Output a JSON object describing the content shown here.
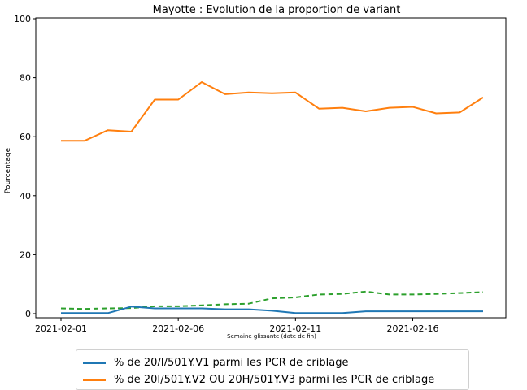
{
  "chart_data": {
    "type": "line",
    "title": "Mayotte : Evolution de la proportion de variant",
    "xlabel": "Semaine glissante (date de fin)",
    "ylabel": "Pourcentage",
    "ylim": [
      0,
      100
    ],
    "yticks": [
      0,
      20,
      40,
      60,
      80,
      100
    ],
    "xticks": [
      "2021-02-01",
      "2021-02-06",
      "2021-02-11",
      "2021-02-16"
    ],
    "x": [
      "2021-02-01",
      "2021-02-02",
      "2021-02-03",
      "2021-02-04",
      "2021-02-05",
      "2021-02-06",
      "2021-02-07",
      "2021-02-08",
      "2021-02-09",
      "2021-02-10",
      "2021-02-11",
      "2021-02-12",
      "2021-02-13",
      "2021-02-14",
      "2021-02-15",
      "2021-02-16",
      "2021-02-17",
      "2021-02-18",
      "2021-02-19"
    ],
    "series": [
      {
        "name": "% de 20/I/501Y.V1 parmi les PCR de criblage",
        "color": "#1f77b4",
        "style": "solid",
        "values": [
          0.2,
          0.2,
          0.2,
          2.4,
          1.8,
          1.8,
          1.8,
          1.5,
          1.5,
          1.0,
          0.2,
          0.2,
          0.2,
          0.8,
          0.8,
          0.8,
          0.8,
          0.8,
          0.8
        ]
      },
      {
        "name": "% de 20I/501Y.V2 OU 20H/501Y.V3 parmi les PCR de criblage",
        "color": "#ff7f0e",
        "style": "solid",
        "values": [
          58.6,
          58.6,
          62.2,
          61.7,
          72.6,
          72.6,
          78.5,
          74.4,
          75.0,
          74.7,
          75.0,
          69.5,
          69.8,
          68.6,
          69.8,
          70.1,
          67.9,
          68.2,
          73.3
        ]
      },
      {
        "color": "#2ca02c",
        "style": "dashed",
        "values": [
          1.8,
          1.6,
          1.8,
          1.9,
          2.5,
          2.5,
          2.8,
          3.2,
          3.4,
          5.2,
          5.5,
          6.5,
          6.7,
          7.5,
          6.5,
          6.5,
          6.7,
          7.0,
          7.3
        ]
      }
    ],
    "grid": false,
    "legend_position": "bottom"
  }
}
